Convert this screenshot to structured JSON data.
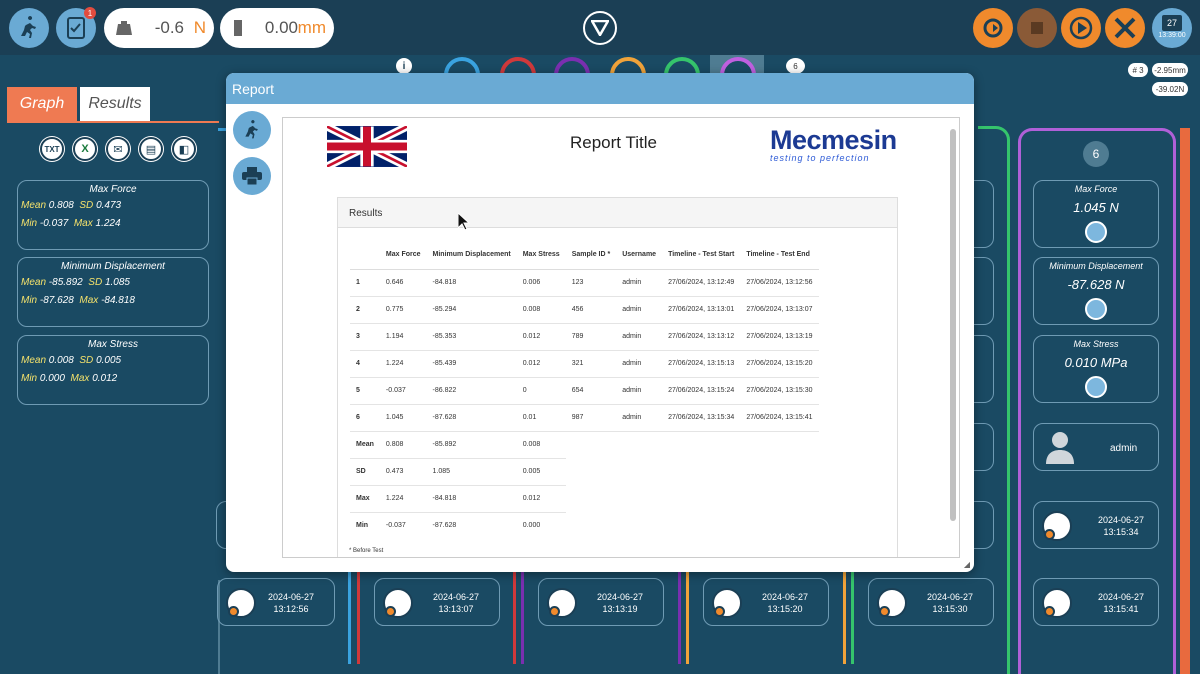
{
  "topbar": {
    "force_value": "-0.6",
    "force_unit": "N",
    "disp_value": "0.00",
    "disp_unit": "mm",
    "notification_count": "1",
    "calendar_day": "27",
    "calendar_time": "13:39:00"
  },
  "left_panel": {
    "tabs": [
      {
        "label": "Graph"
      },
      {
        "label": "Results"
      }
    ],
    "tool_icons": [
      "TXT",
      "X",
      "✉",
      "▤",
      "◧"
    ],
    "stats": [
      {
        "title": "Max Force",
        "mean_label": "Mean",
        "mean": "0.808",
        "sd_label": "SD",
        "sd": "0.473",
        "min_label": "Min",
        "min": "-0.037",
        "max_label": "Max",
        "max": "1.224"
      },
      {
        "title": "Minimum Displacement",
        "mean_label": "Mean",
        "mean": "-85.892",
        "sd_label": "SD",
        "sd": "1.085",
        "min_label": "Min",
        "min": "-87.628",
        "max_label": "Max",
        "max": "-84.818"
      },
      {
        "title": "Max Stress",
        "mean_label": "Mean",
        "mean": "0.008",
        "sd_label": "SD",
        "sd": "0.005",
        "min_label": "Min",
        "min": "0.000",
        "max_label": "Max",
        "max": "0.012"
      }
    ]
  },
  "right_panel": {
    "test_number": "6",
    "cards": [
      {
        "title": "Max Force",
        "value": "1.045 N"
      },
      {
        "title": "Minimum Displacement",
        "value": "-87.628 N"
      },
      {
        "title": "Max Stress",
        "value": "0.010 MPa"
      }
    ],
    "user": "admin",
    "times": [
      {
        "date": "2024-06-27",
        "time": "13:15:34"
      },
      {
        "date": "2024-06-27",
        "time": "13:15:41"
      }
    ],
    "chip_test": "# 3",
    "chip_disp": "-2.95mm",
    "chip_force": "-39.02N",
    "chip_six": "6"
  },
  "bottom_times": [
    {
      "date": "2024-06-27",
      "time": "13:12:56"
    },
    {
      "date": "2024-06-27",
      "time": "13:13:07"
    },
    {
      "date": "2024-06-27",
      "time": "13:13:19"
    },
    {
      "date": "2024-06-27",
      "time": "13:15:20"
    },
    {
      "date": "2024-06-27",
      "time": "13:15:30"
    }
  ],
  "colors": {
    "accent_blue": "#6aaad4",
    "accent_orange": "#f08a2c",
    "background": "#1a4a63"
  },
  "report": {
    "window_title": "Report",
    "title": "Report Title",
    "logo": "Mecmesin",
    "logo_tagline": "testing to perfection",
    "results_heading": "Results",
    "columns": [
      "",
      "Max Force",
      "Minimum Displacement",
      "Max Stress",
      "Sample ID *",
      "Username",
      "Timeline - Test Start",
      "Timeline - Test End"
    ],
    "rows": [
      [
        "1",
        "0.646",
        "-84.818",
        "0.006",
        "123",
        "admin",
        "27/06/2024, 13:12:49",
        "27/06/2024, 13:12:56"
      ],
      [
        "2",
        "0.775",
        "-85.294",
        "0.008",
        "456",
        "admin",
        "27/06/2024, 13:13:01",
        "27/06/2024, 13:13:07"
      ],
      [
        "3",
        "1.194",
        "-85.353",
        "0.012",
        "789",
        "admin",
        "27/06/2024, 13:13:12",
        "27/06/2024, 13:13:19"
      ],
      [
        "4",
        "1.224",
        "-85.439",
        "0.012",
        "321",
        "admin",
        "27/06/2024, 13:15:13",
        "27/06/2024, 13:15:20"
      ],
      [
        "5",
        "-0.037",
        "-86.822",
        "0",
        "654",
        "admin",
        "27/06/2024, 13:15:24",
        "27/06/2024, 13:15:30"
      ],
      [
        "6",
        "1.045",
        "-87.628",
        "0.01",
        "987",
        "admin",
        "27/06/2024, 13:15:34",
        "27/06/2024, 13:15:41"
      ]
    ],
    "summary": [
      [
        "Mean",
        "0.808",
        "-85.892",
        "0.008"
      ],
      [
        "SD",
        "0.473",
        "1.085",
        "0.005"
      ],
      [
        "Max",
        "1.224",
        "-84.818",
        "0.012"
      ],
      [
        "Min",
        "-0.037",
        "-87.628",
        "0.000"
      ]
    ],
    "footnote": "* Before Test"
  }
}
